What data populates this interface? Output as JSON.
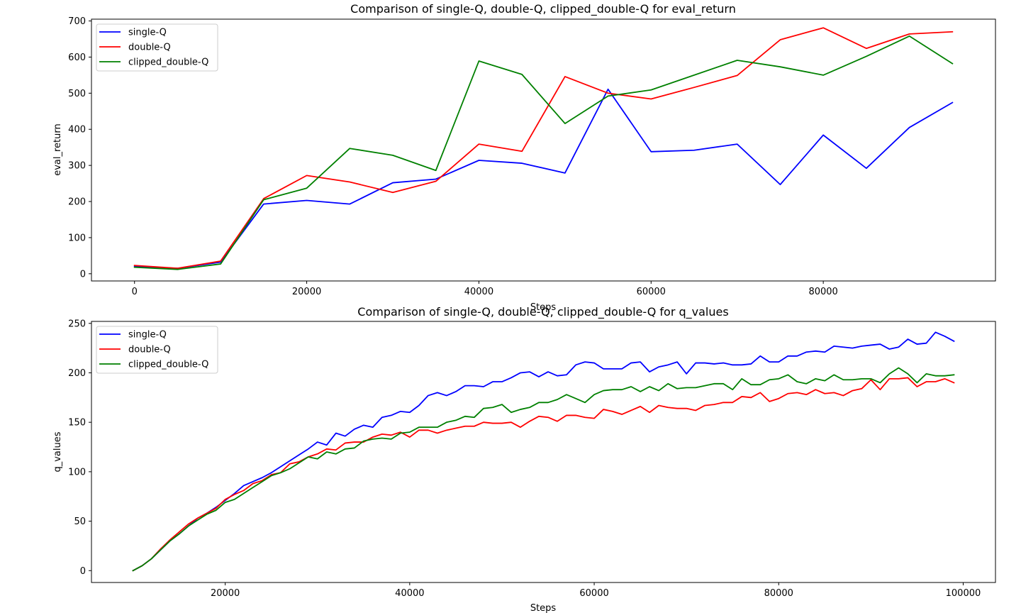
{
  "chart_data": [
    {
      "type": "line",
      "title": "Comparison of single-Q, double-Q, clipped_double-Q for eval_return",
      "xlabel": "Steps",
      "ylabel": "eval_return",
      "xlim": [
        -5000,
        100000
      ],
      "ylim": [
        -20,
        705
      ],
      "xticks": [
        0,
        20000,
        40000,
        60000,
        80000
      ],
      "yticks": [
        0,
        100,
        200,
        300,
        400,
        500,
        600,
        700
      ],
      "legend_position": "upper-left",
      "grid": false,
      "x": [
        0,
        5000,
        10000,
        15000,
        20000,
        25000,
        30000,
        35000,
        40000,
        45000,
        50000,
        55000,
        60000,
        65000,
        70000,
        75000,
        80000,
        85000,
        90000,
        95000
      ],
      "series": [
        {
          "name": "single-Q",
          "color": "#0000ff",
          "values": [
            20,
            15,
            32,
            193,
            203,
            193,
            252,
            262,
            314,
            306,
            279,
            511,
            338,
            342,
            359,
            247,
            384,
            292,
            405,
            474
          ]
        },
        {
          "name": "double-Q",
          "color": "#ff0000",
          "values": [
            23,
            15,
            35,
            208,
            272,
            254,
            225,
            256,
            359,
            339,
            546,
            500,
            484,
            516,
            549,
            648,
            681,
            624,
            664,
            670
          ]
        },
        {
          "name": "clipped_double-Q",
          "color": "#008000",
          "values": [
            18,
            12,
            27,
            205,
            237,
            347,
            328,
            286,
            589,
            552,
            416,
            492,
            509,
            550,
            591,
            573,
            550,
            602,
            658,
            582
          ]
        }
      ]
    },
    {
      "type": "line",
      "title": "Comparison of single-Q, double-Q, clipped_double-Q for q_values",
      "xlabel": "Steps",
      "ylabel": "q_values",
      "xlim": [
        5500,
        103500
      ],
      "ylim": [
        -12,
        252
      ],
      "xticks": [
        20000,
        40000,
        60000,
        80000,
        100000
      ],
      "yticks": [
        0,
        50,
        100,
        150,
        200,
        250
      ],
      "legend_position": "upper-left",
      "grid": false,
      "x_start": 10000,
      "x_step": 1000,
      "series": [
        {
          "name": "single-Q",
          "color": "#0000ff",
          "values": [
            0,
            5,
            12,
            21,
            30,
            37,
            45,
            53,
            58,
            64,
            71,
            78,
            86,
            90,
            94,
            99,
            105,
            111,
            117,
            123,
            130,
            127,
            139,
            136,
            143,
            147,
            145,
            155,
            157,
            161,
            160,
            167,
            177,
            180,
            177,
            181,
            187,
            187,
            186,
            191,
            191,
            195,
            200,
            201,
            196,
            201,
            197,
            198,
            208,
            211,
            210,
            204,
            204,
            204,
            210,
            211,
            201,
            206,
            208,
            211,
            199,
            210,
            210,
            209,
            210,
            208,
            208,
            209,
            217,
            211,
            211,
            217,
            217,
            221,
            222,
            221,
            227,
            226,
            225,
            227,
            228,
            229,
            224,
            226,
            234,
            229,
            230,
            241,
            237,
            232
          ]
        },
        {
          "name": "double-Q",
          "color": "#ff0000",
          "values": [
            0,
            5,
            12,
            22,
            31,
            39,
            47,
            53,
            58,
            63,
            72,
            77,
            81,
            88,
            91,
            97,
            99,
            108,
            110,
            115,
            118,
            123,
            122,
            129,
            130,
            130,
            135,
            138,
            137,
            140,
            135,
            142,
            142,
            139,
            142,
            144,
            146,
            146,
            150,
            149,
            149,
            150,
            145,
            151,
            156,
            155,
            151,
            157,
            157,
            155,
            154,
            163,
            161,
            158,
            162,
            166,
            160,
            167,
            165,
            164,
            164,
            162,
            167,
            168,
            170,
            170,
            176,
            175,
            180,
            171,
            174,
            179,
            180,
            178,
            183,
            179,
            180,
            177,
            182,
            184,
            193,
            183,
            194,
            194,
            195,
            186,
            191,
            191,
            194,
            190
          ]
        },
        {
          "name": "clipped_double-Q",
          "color": "#008000",
          "values": [
            0,
            5,
            12,
            21,
            30,
            37,
            45,
            51,
            57,
            61,
            69,
            72,
            78,
            84,
            90,
            96,
            99,
            103,
            109,
            115,
            113,
            120,
            118,
            123,
            124,
            131,
            133,
            134,
            133,
            139,
            140,
            145,
            145,
            145,
            150,
            152,
            156,
            155,
            164,
            165,
            168,
            160,
            163,
            165,
            170,
            170,
            173,
            178,
            174,
            170,
            178,
            182,
            183,
            183,
            186,
            181,
            186,
            182,
            189,
            184,
            185,
            185,
            187,
            189,
            189,
            183,
            194,
            188,
            188,
            193,
            194,
            198,
            191,
            189,
            194,
            192,
            198,
            193,
            193,
            194,
            194,
            190,
            199,
            205,
            199,
            190,
            199,
            197,
            197,
            198
          ]
        }
      ]
    }
  ]
}
